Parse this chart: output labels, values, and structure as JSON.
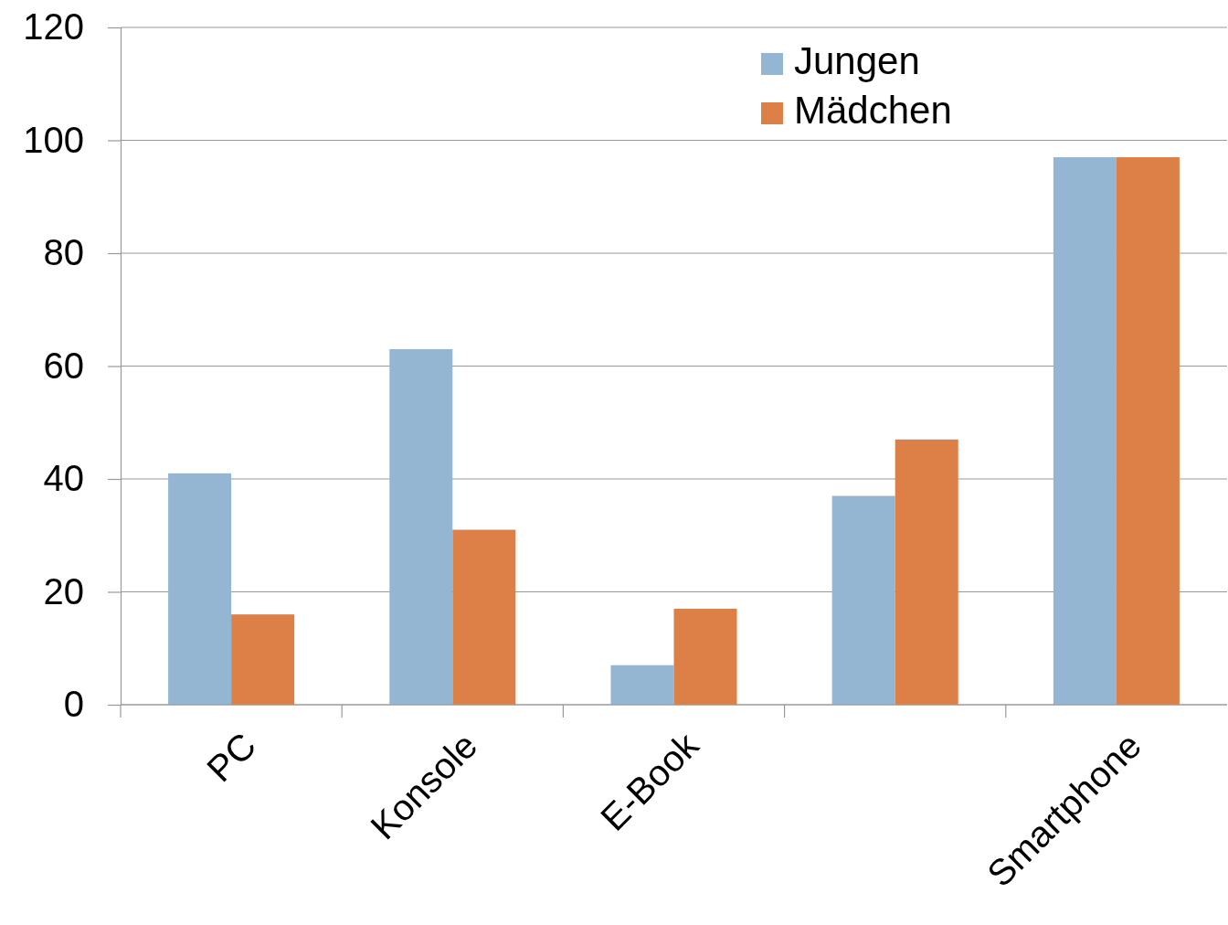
{
  "chart_data": {
    "type": "bar",
    "categories": [
      "PC",
      "Konsole",
      "E-Book",
      null,
      "Smartphone"
    ],
    "series": [
      {
        "name": "Jungen",
        "color": "#95b6d3",
        "values": [
          41,
          63,
          7,
          37,
          97
        ]
      },
      {
        "name": "Mädchen",
        "color": "#dd8047",
        "values": [
          16,
          31,
          17,
          47,
          97
        ]
      }
    ],
    "ylim": [
      0,
      120
    ],
    "yticks": [
      0,
      20,
      40,
      60,
      80,
      100,
      120
    ],
    "grid": "y",
    "legend": "top right"
  }
}
